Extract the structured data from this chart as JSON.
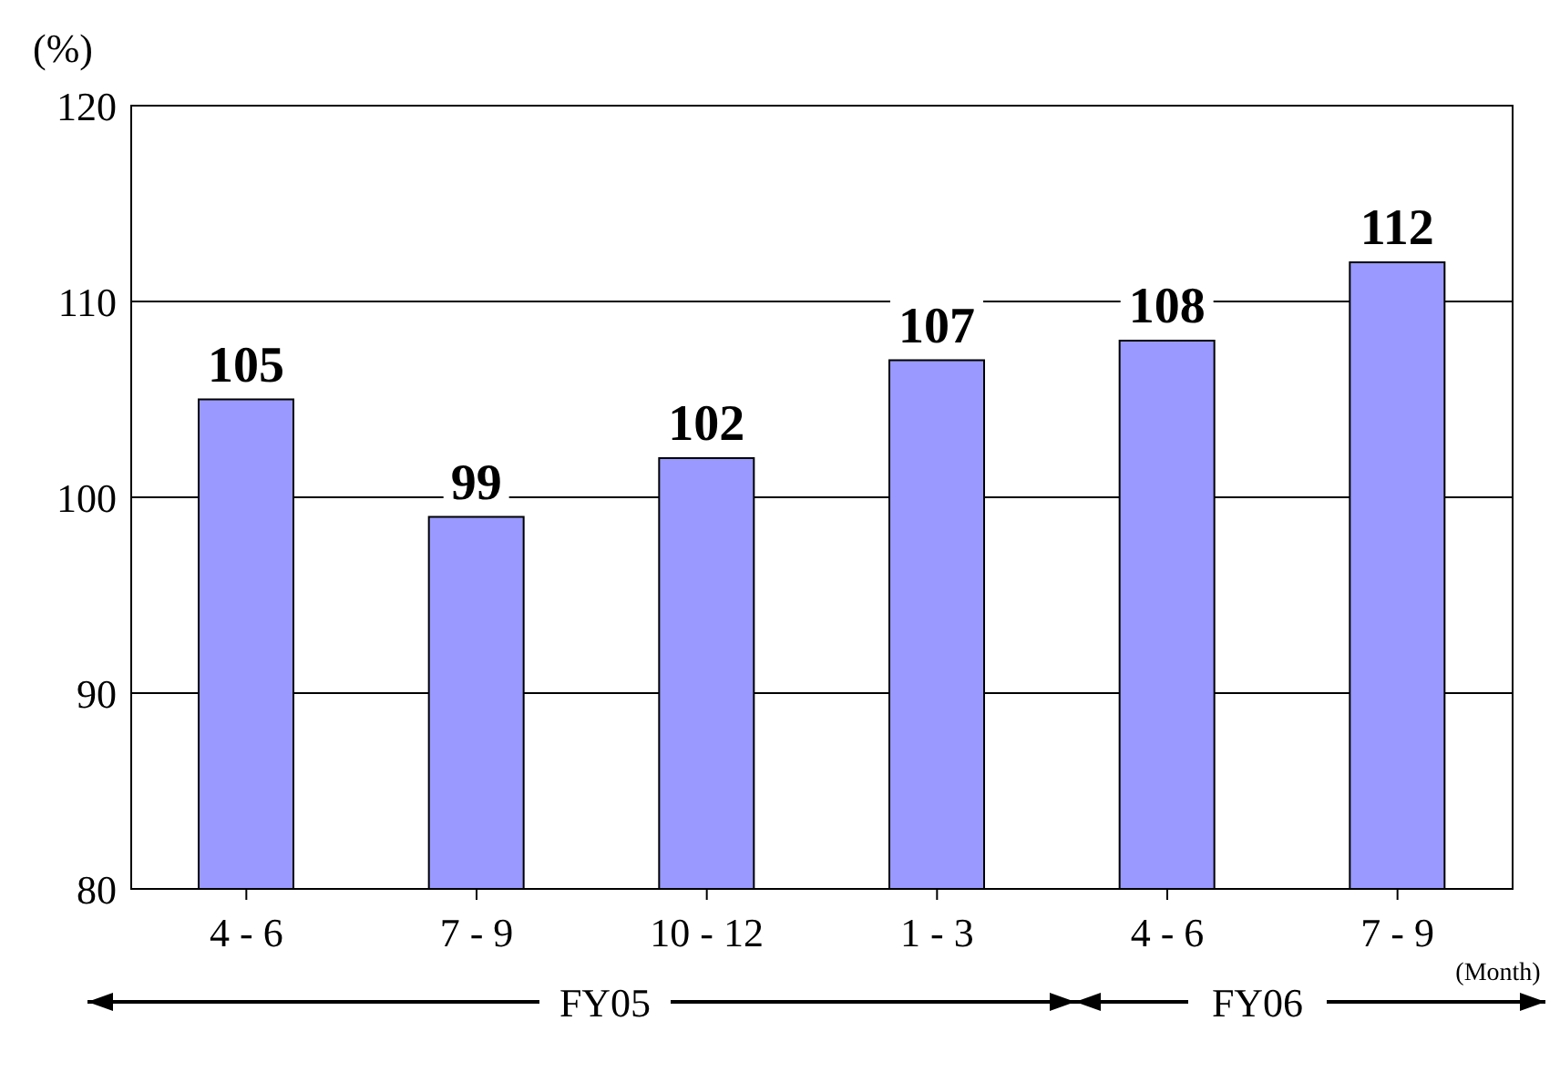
{
  "chart_data": {
    "type": "bar",
    "ylabel": "(%)",
    "categories": [
      "4 - 6",
      "7 - 9",
      "10 - 12",
      "1 - 3",
      "4 - 6",
      "7 - 9"
    ],
    "values": [
      105,
      99,
      102,
      107,
      108,
      112
    ],
    "color": "#9999ff",
    "ylim": [
      80,
      120
    ],
    "yticks": [
      80,
      90,
      100,
      110,
      120
    ],
    "grid": "y",
    "data_labels": true,
    "annotations": [
      "FY05",
      "FY06",
      "(Month)"
    ]
  }
}
